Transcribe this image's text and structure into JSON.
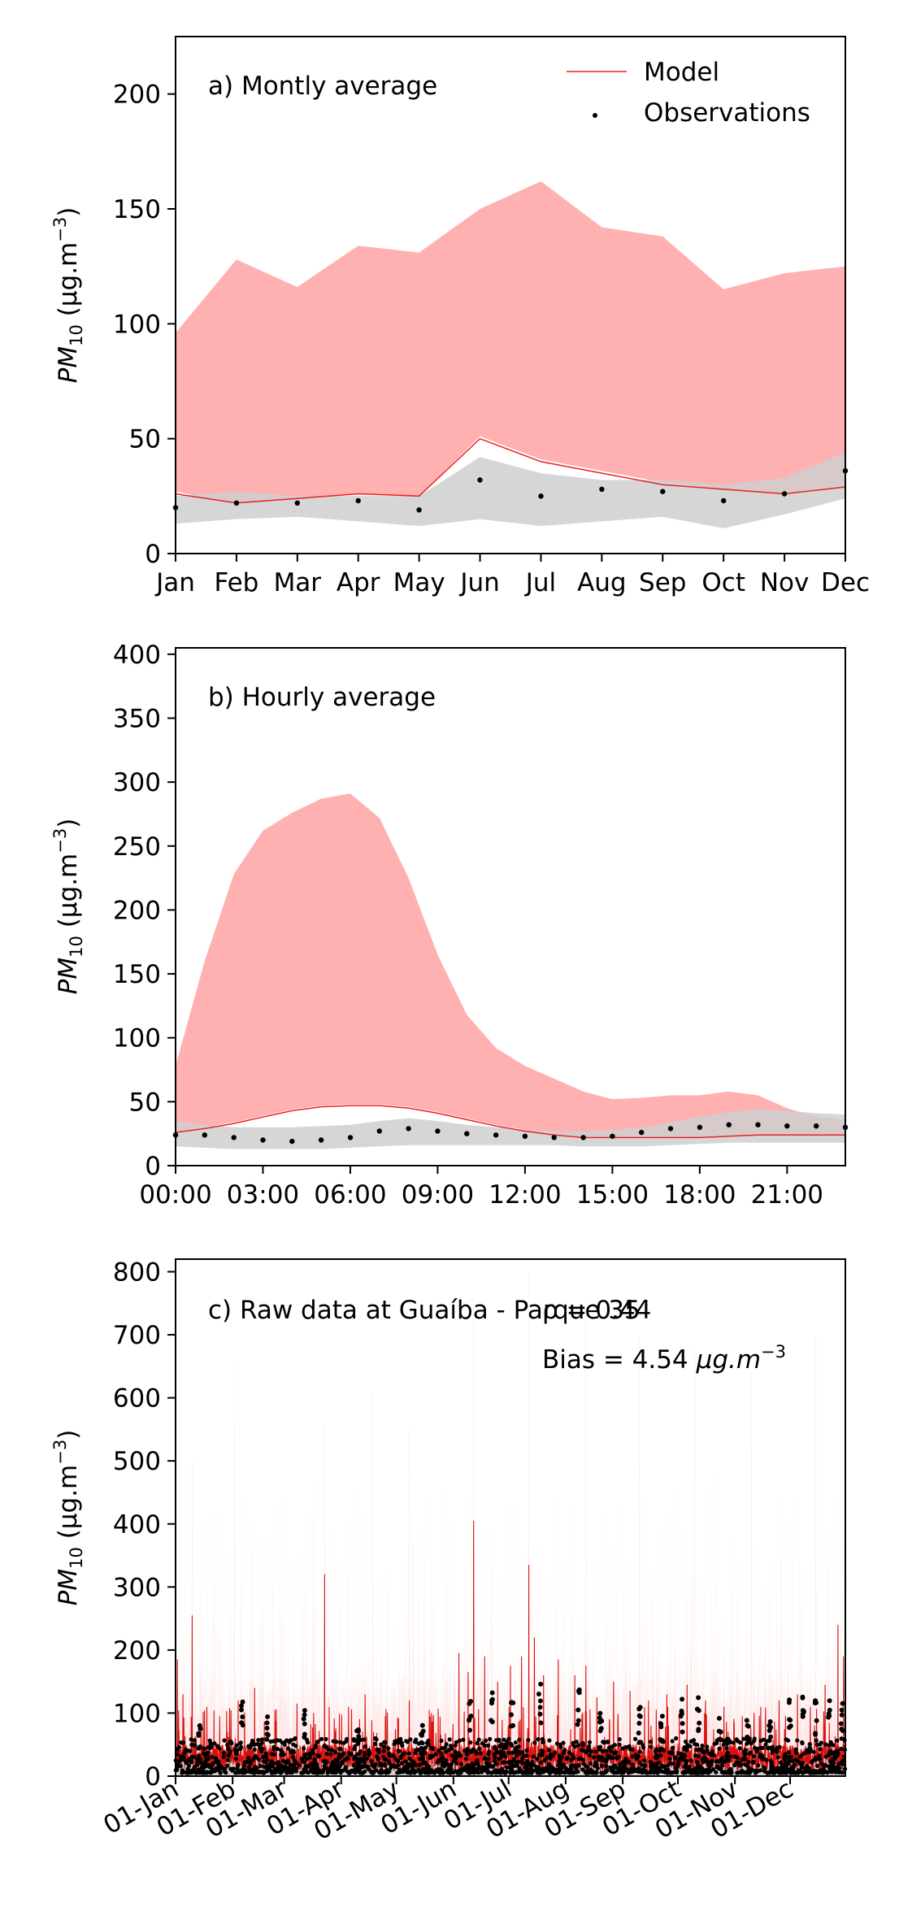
{
  "chart_data": [
    {
      "type": "line",
      "panel_label": "a) Montly average",
      "ylabel": "PM10 (µg.m⁻³)",
      "ylabel_main": "PM",
      "ylabel_sub": "10",
      "ylabel_unit": " (µg.m",
      "ylabel_exp": "−3",
      "ylabel_close": ")",
      "ylim": [
        0,
        225
      ],
      "yticks": [
        0,
        50,
        100,
        150,
        200
      ],
      "x_axis_type": "category",
      "categories": [
        "Jan",
        "Feb",
        "Mar",
        "Apr",
        "May",
        "Jun",
        "Jul",
        "Aug",
        "Sep",
        "Oct",
        "Nov",
        "Dec"
      ],
      "xlim": [
        0,
        11
      ],
      "legend": {
        "position": "top-right",
        "entries": [
          "Model",
          "Observations"
        ]
      },
      "series": [
        {
          "name": "Model",
          "kind": "line",
          "color": "#e8211d",
          "values": [
            26,
            22,
            24,
            26,
            25,
            50,
            40,
            35,
            30,
            28,
            26,
            29
          ]
        },
        {
          "name": "Observations",
          "kind": "points",
          "color": "#000000",
          "values": [
            20,
            22,
            22,
            23,
            19,
            32,
            25,
            28,
            27,
            23,
            26,
            36
          ]
        }
      ],
      "bands": [
        {
          "color": "#ffb0b0",
          "low": [
            27,
            22,
            24,
            26,
            25,
            51,
            41,
            36,
            31,
            28,
            26,
            30
          ],
          "high": [
            96,
            128,
            116,
            134,
            131,
            150,
            162,
            142,
            138,
            115,
            122,
            125
          ]
        },
        {
          "color": "#cfcfcf",
          "low": [
            13,
            15,
            16,
            14,
            12,
            15,
            12,
            14,
            16,
            11,
            17,
            24
          ],
          "high": [
            25,
            27,
            25,
            25,
            25,
            42,
            35,
            32,
            32,
            30,
            33,
            44
          ]
        }
      ]
    },
    {
      "type": "line",
      "panel_label": "b) Hourly average",
      "ylabel": "PM10 (µg.m⁻³)",
      "ylabel_main": "PM",
      "ylabel_sub": "10",
      "ylabel_unit": " (µg.m",
      "ylabel_exp": "−3",
      "ylabel_close": ")",
      "ylim": [
        0,
        405
      ],
      "yticks": [
        0,
        50,
        100,
        150,
        200,
        250,
        300,
        350,
        400
      ],
      "x_axis_type": "hour",
      "xlim": [
        0,
        23
      ],
      "xticks": [
        0,
        3,
        6,
        9,
        12,
        15,
        18,
        21
      ],
      "xtick_labels": [
        "00:00",
        "03:00",
        "06:00",
        "09:00",
        "12:00",
        "15:00",
        "18:00",
        "21:00"
      ],
      "series": [
        {
          "name": "Model",
          "kind": "line",
          "color": "#e8211d",
          "x": [
            0,
            1,
            2,
            3,
            4,
            5,
            6,
            7,
            8,
            9,
            10,
            11,
            12,
            13,
            14,
            15,
            16,
            17,
            18,
            19,
            20,
            21,
            22,
            23
          ],
          "values": [
            26,
            29,
            33,
            38,
            43,
            46,
            47,
            47,
            45,
            41,
            36,
            31,
            27,
            24,
            22,
            22,
            22,
            22,
            22,
            23,
            24,
            24,
            24,
            24
          ]
        },
        {
          "name": "Observations",
          "kind": "points",
          "color": "#000000",
          "x": [
            0,
            1,
            2,
            3,
            4,
            5,
            6,
            7,
            8,
            9,
            10,
            11,
            12,
            13,
            14,
            15,
            16,
            17,
            18,
            19,
            20,
            21,
            22,
            23
          ],
          "values": [
            24,
            24,
            22,
            20,
            19,
            20,
            22,
            27,
            29,
            27,
            25,
            24,
            23,
            22,
            22,
            23,
            26,
            29,
            30,
            32,
            32,
            31,
            31,
            30
          ]
        }
      ],
      "bands": [
        {
          "color": "#ffb0b0",
          "x": [
            0,
            1,
            2,
            3,
            4,
            5,
            6,
            7,
            8,
            9,
            10,
            11,
            12,
            13,
            14,
            15,
            16,
            17,
            18,
            19,
            20,
            21,
            22,
            23
          ],
          "low": [
            27,
            30,
            34,
            39,
            44,
            47,
            48,
            48,
            46,
            42,
            37,
            32,
            28,
            25,
            23,
            23,
            23,
            23,
            23,
            24,
            25,
            25,
            25,
            25
          ],
          "high": [
            78,
            160,
            228,
            262,
            276,
            287,
            291,
            272,
            225,
            165,
            118,
            92,
            78,
            68,
            58,
            52,
            53,
            55,
            55,
            58,
            55,
            45,
            38,
            36
          ]
        },
        {
          "color": "#cfcfcf",
          "x": [
            0,
            1,
            2,
            3,
            4,
            5,
            6,
            7,
            8,
            9,
            10,
            11,
            12,
            13,
            14,
            15,
            16,
            17,
            18,
            19,
            20,
            21,
            22,
            23
          ],
          "low": [
            15,
            14,
            13,
            13,
            13,
            13,
            14,
            15,
            16,
            16,
            16,
            16,
            16,
            16,
            15,
            15,
            15,
            16,
            17,
            18,
            18,
            18,
            18,
            18
          ],
          "high": [
            35,
            32,
            30,
            30,
            30,
            31,
            32,
            35,
            37,
            35,
            32,
            30,
            28,
            27,
            27,
            28,
            30,
            34,
            38,
            42,
            44,
            43,
            41,
            40
          ]
        }
      ]
    },
    {
      "type": "line",
      "panel_label": "c) Raw data at Guaíba - Parque 35",
      "stats_r": "ρ = 0.44",
      "stats_bias": "Bias = 4.54 µg.m⁻³",
      "stats_bias_main": "Bias = 4.54 ",
      "stats_bias_unit": "µg.m",
      "stats_bias_exp": "−3",
      "ylabel": "PM10 (µg.m⁻³)",
      "ylabel_main": "PM",
      "ylabel_sub": "10",
      "ylabel_unit": " (µg.m",
      "ylabel_exp": "−3",
      "ylabel_close": ")",
      "ylim": [
        0,
        820
      ],
      "yticks": [
        0,
        100,
        200,
        300,
        400,
        500,
        600,
        700,
        800
      ],
      "x_axis_type": "date",
      "xlim": [
        "2019-01-01",
        "2019-12-31"
      ],
      "xtick_labels": [
        "01-Jan",
        "01-Feb",
        "01-Mar",
        "01-Apr",
        "01-May",
        "01-Jun",
        "01-Jul",
        "01-Aug",
        "01-Sep",
        "01-Oct",
        "01-Nov",
        "01-Dec"
      ],
      "xtick_dates": [
        "2019-01-01",
        "2019-02-01",
        "2019-03-01",
        "2019-04-01",
        "2019-05-01",
        "2019-06-01",
        "2019-07-01",
        "2019-08-01",
        "2019-09-01",
        "2019-10-01",
        "2019-11-01",
        "2019-12-01"
      ],
      "model_peaks": [
        [
          "2019-01-02",
          185
        ],
        [
          "2019-01-05",
          130
        ],
        [
          "2019-01-10",
          255
        ],
        [
          "2019-01-18",
          110
        ],
        [
          "2019-01-25",
          95
        ],
        [
          "2019-02-04",
          120
        ],
        [
          "2019-02-13",
          140
        ],
        [
          "2019-02-24",
          105
        ],
        [
          "2019-03-08",
          115
        ],
        [
          "2019-03-17",
          100
        ],
        [
          "2019-03-23",
          320
        ],
        [
          "2019-04-05",
          110
        ],
        [
          "2019-04-14",
          130
        ],
        [
          "2019-04-25",
          95
        ],
        [
          "2019-05-08",
          120
        ],
        [
          "2019-05-20",
          100
        ],
        [
          "2019-06-04",
          195
        ],
        [
          "2019-06-09",
          165
        ],
        [
          "2019-06-12",
          405
        ],
        [
          "2019-06-18",
          190
        ],
        [
          "2019-06-25",
          150
        ],
        [
          "2019-07-02",
          175
        ],
        [
          "2019-07-08",
          190
        ],
        [
          "2019-07-12",
          335
        ],
        [
          "2019-07-15",
          220
        ],
        [
          "2019-07-20",
          160
        ],
        [
          "2019-07-28",
          185
        ],
        [
          "2019-08-06",
          160
        ],
        [
          "2019-08-12",
          175
        ],
        [
          "2019-08-18",
          125
        ],
        [
          "2019-08-27",
          150
        ],
        [
          "2019-09-05",
          135
        ],
        [
          "2019-09-15",
          120
        ],
        [
          "2019-09-25",
          130
        ],
        [
          "2019-10-06",
          145
        ],
        [
          "2019-10-16",
          120
        ],
        [
          "2019-10-26",
          110
        ],
        [
          "2019-11-05",
          95
        ],
        [
          "2019-11-15",
          110
        ],
        [
          "2019-11-25",
          120
        ],
        [
          "2019-12-05",
          130
        ],
        [
          "2019-12-12",
          110
        ],
        [
          "2019-12-20",
          145
        ],
        [
          "2019-12-27",
          240
        ],
        [
          "2019-12-30",
          190
        ]
      ],
      "observation_peaks": [
        [
          "2019-01-14",
          80
        ],
        [
          "2019-02-06",
          135
        ],
        [
          "2019-02-20",
          95
        ],
        [
          "2019-03-12",
          105
        ],
        [
          "2019-04-10",
          80
        ],
        [
          "2019-05-15",
          90
        ],
        [
          "2019-06-10",
          120
        ],
        [
          "2019-06-22",
          140
        ],
        [
          "2019-07-03",
          130
        ],
        [
          "2019-07-18",
          150
        ],
        [
          "2019-08-08",
          145
        ],
        [
          "2019-08-20",
          100
        ],
        [
          "2019-09-10",
          110
        ],
        [
          "2019-09-22",
          95
        ],
        [
          "2019-10-03",
          125
        ],
        [
          "2019-10-12",
          130
        ],
        [
          "2019-10-24",
          105
        ],
        [
          "2019-11-08",
          90
        ],
        [
          "2019-11-20",
          100
        ],
        [
          "2019-12-01",
          125
        ],
        [
          "2019-12-08",
          135
        ],
        [
          "2019-12-15",
          120
        ],
        [
          "2019-12-22",
          130
        ],
        [
          "2019-12-29",
          125
        ]
      ],
      "upper_band_peaks": [
        [
          "2019-01-10",
          500
        ],
        [
          "2019-02-02",
          650
        ],
        [
          "2019-03-23",
          560
        ],
        [
          "2019-04-18",
          610
        ],
        [
          "2019-05-08",
          550
        ],
        [
          "2019-06-12",
          760
        ],
        [
          "2019-07-12",
          800
        ],
        [
          "2019-08-12",
          720
        ],
        [
          "2019-09-10",
          700
        ],
        [
          "2019-10-10",
          680
        ],
        [
          "2019-11-10",
          640
        ],
        [
          "2019-12-15",
          700
        ]
      ]
    }
  ]
}
